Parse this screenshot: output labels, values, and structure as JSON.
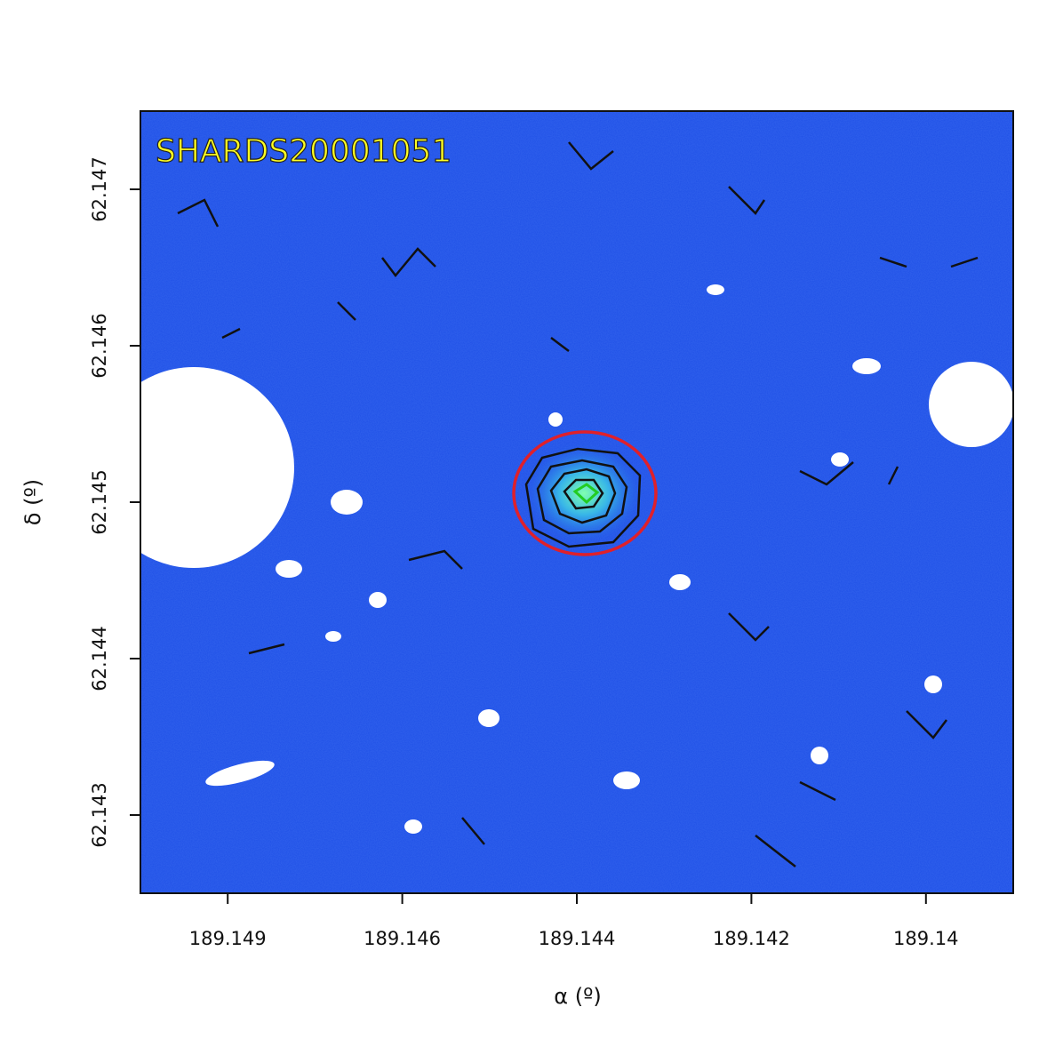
{
  "chart_data": {
    "type": "image",
    "title": "SHARDS20001051",
    "x_label": "α (º)",
    "y_label": "δ (º)",
    "xlim": [
      189.1496,
      189.1386
    ],
    "ylim": [
      62.1425,
      62.1475
    ],
    "xticks": [
      {
        "value": 189.1485,
        "label": "189.149"
      },
      {
        "value": 189.1463,
        "label": "189.146"
      },
      {
        "value": 189.1441,
        "label": "189.144"
      },
      {
        "value": 189.1419,
        "label": "189.142"
      },
      {
        "value": 189.1397,
        "label": "189.14"
      }
    ],
    "yticks": [
      62.143,
      62.144,
      62.145,
      62.146,
      62.147
    ]
  }
}
